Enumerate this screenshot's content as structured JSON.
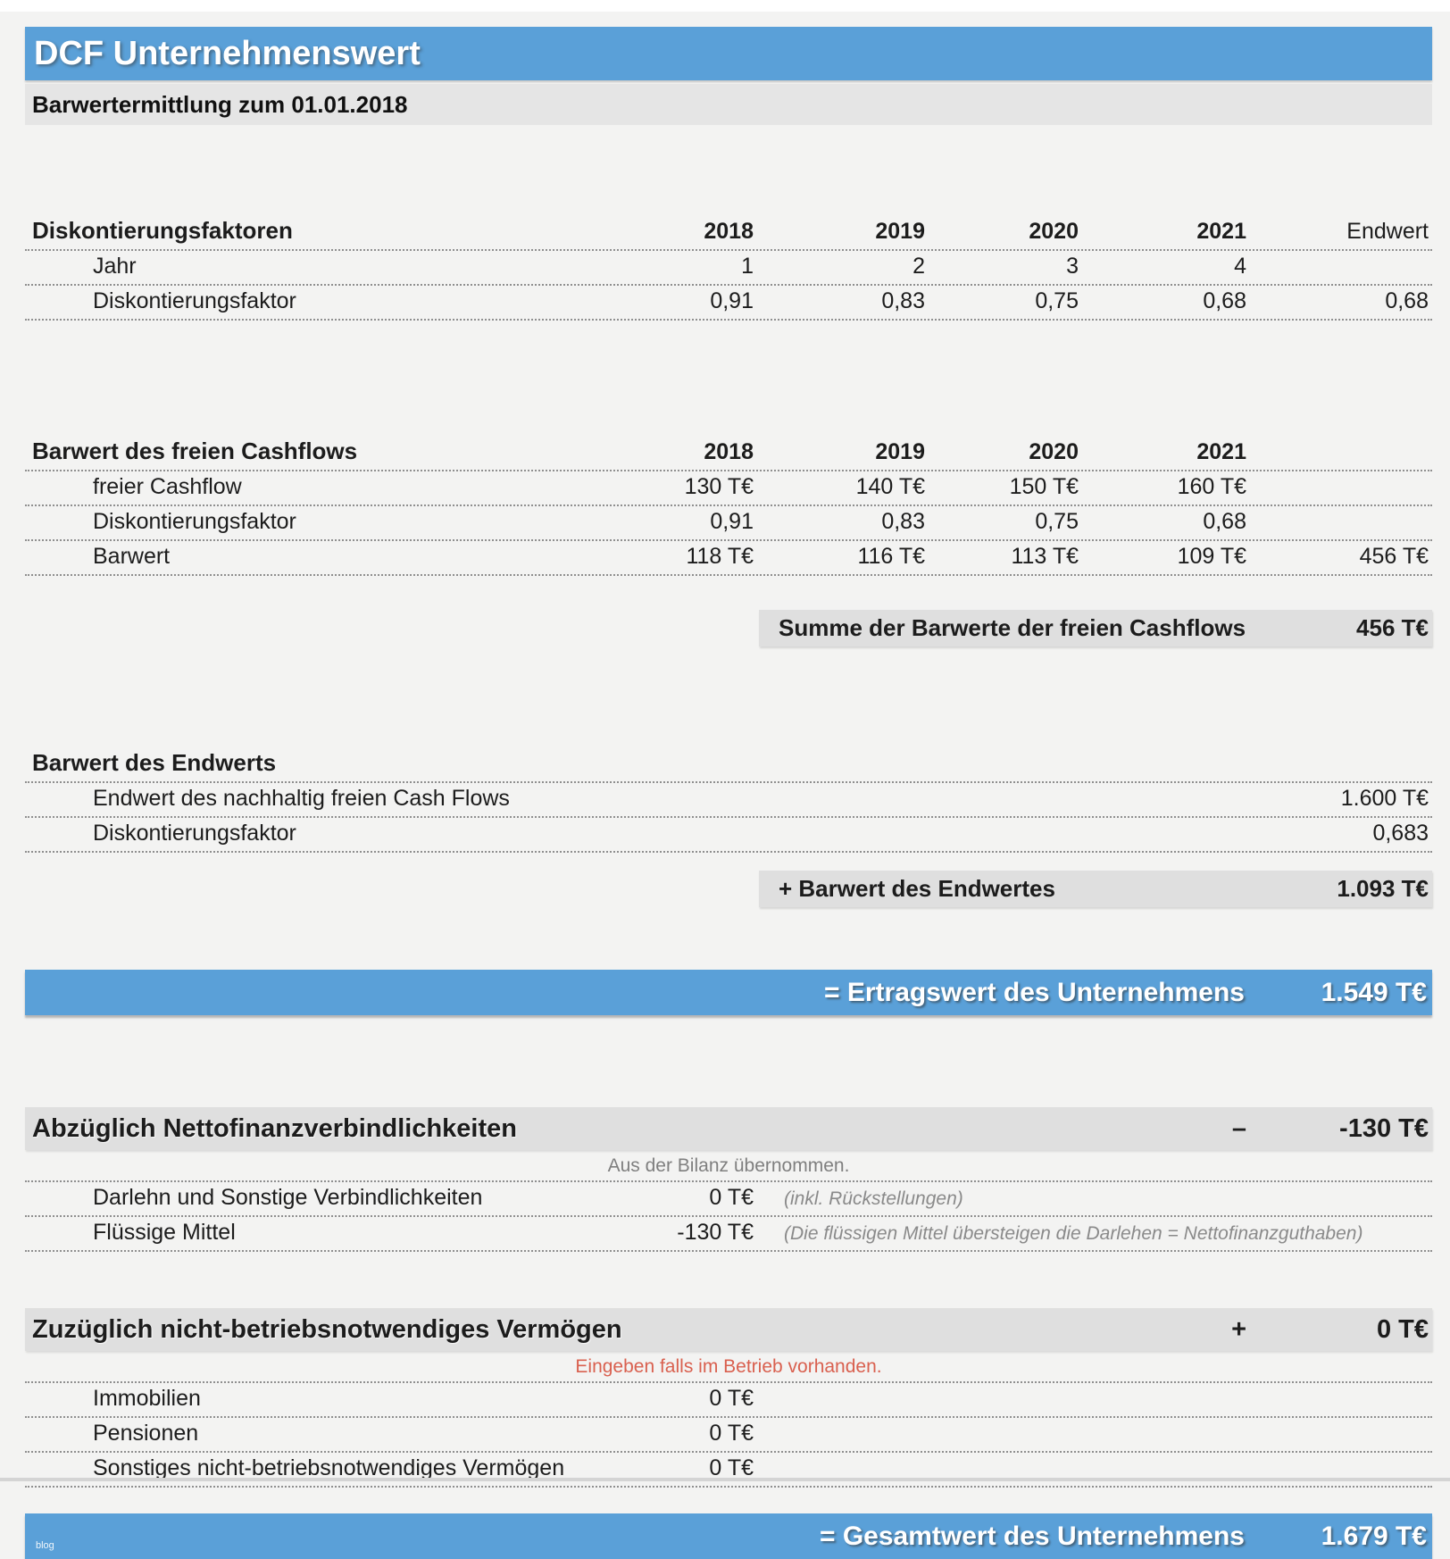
{
  "page": {
    "title": "DCF Unternehmenswert",
    "subtitle": "Barwertermittlung zum 01.01.2018",
    "watermark": "blog"
  },
  "colors": {
    "accent_blue": "#5aa0d8",
    "bar_gray": "#dfdfdf",
    "note_red": "#d9604f",
    "note_gray": "#7f7f7f"
  },
  "discount_table": {
    "title": "Diskontierungsfaktoren",
    "columns": [
      "2018",
      "2019",
      "2020",
      "2021",
      "Endwert"
    ],
    "rows": [
      {
        "label": "Jahr",
        "values": [
          "1",
          "2",
          "3",
          "4",
          ""
        ]
      },
      {
        "label": "Diskontierungsfaktor",
        "values": [
          "0,91",
          "0,83",
          "0,75",
          "0,68",
          "0,68"
        ]
      }
    ]
  },
  "cashflow_table": {
    "title": "Barwert des freien Cashflows",
    "columns": [
      "2018",
      "2019",
      "2020",
      "2021",
      ""
    ],
    "rows": [
      {
        "label": "freier Cashflow",
        "values": [
          "130 T€",
          "140 T€",
          "150 T€",
          "160 T€",
          ""
        ]
      },
      {
        "label": "Diskontierungsfaktor",
        "values": [
          "0,91",
          "0,83",
          "0,75",
          "0,68",
          ""
        ]
      },
      {
        "label": "Barwert",
        "values": [
          "118 T€",
          "116 T€",
          "113 T€",
          "109 T€",
          "456 T€"
        ]
      }
    ],
    "summary": {
      "label": "Summe der Barwerte der freien Cashflows",
      "value": "456 T€"
    }
  },
  "endwert_table": {
    "title": "Barwert des Endwerts",
    "rows": [
      {
        "label": "Endwert des nachhaltig freien Cash Flows",
        "value": "1.600 T€"
      },
      {
        "label": "Diskontierungsfaktor",
        "value": "0,683"
      }
    ],
    "summary": {
      "label": "+ Barwert des Endwertes",
      "value": "1.093 T€"
    }
  },
  "ertragswert_bar": {
    "label": "= Ertragswert des Unternehmens",
    "value": "1.549 T€"
  },
  "liabilities_section": {
    "title": "Abzüglich Nettofinanzverbindlichkeiten",
    "operator": "–",
    "value": "-130 T€",
    "note": "Aus der Bilanz übernommen.",
    "rows": [
      {
        "label": "Darlehn und Sonstige Verbindlichkeiten",
        "value": "0 T€",
        "annotation": "(inkl. Rückstellungen)"
      },
      {
        "label": "Flüssige Mittel",
        "value": "-130 T€",
        "annotation": "(Die flüssigen Mittel übersteigen die Darlehen = Nettofinanzguthaben)"
      }
    ]
  },
  "assets_section": {
    "title": "Zuzüglich nicht-betriebsnotwendiges Vermögen",
    "operator": "+",
    "value": "0 T€",
    "note": "Eingeben falls im Betrieb vorhanden.",
    "rows": [
      {
        "label": "Immobilien",
        "value": "0 T€",
        "annotation": ""
      },
      {
        "label": "Pensionen",
        "value": "0 T€",
        "annotation": ""
      },
      {
        "label": "Sonstiges nicht-betriebsnotwendiges Vermögen",
        "value": "0 T€",
        "annotation": ""
      }
    ]
  },
  "gesamtwert_bar": {
    "label": "= Gesamtwert des Unternehmens",
    "value": "1.679 T€"
  }
}
